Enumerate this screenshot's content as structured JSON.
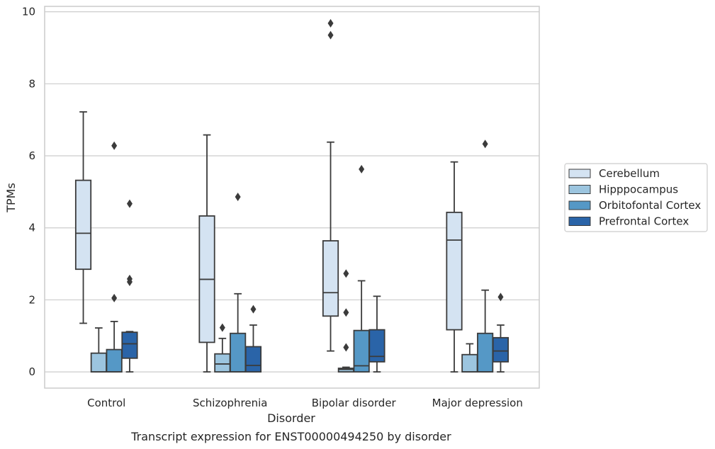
{
  "caption": "Transcript expression for ENST00000494250 by disorder",
  "chart_data": {
    "type": "box",
    "xlabel": "Disorder",
    "ylabel": "TPMs",
    "ylim": [
      -0.45,
      10.15
    ],
    "yticks": [
      0,
      2,
      4,
      6,
      8,
      10
    ],
    "grid": "horizontal",
    "legend_position": "right",
    "categories": [
      "Control",
      "Schizophrenia",
      "Bipolar disorder",
      "Major depression"
    ],
    "series": [
      {
        "name": "Cerebellum",
        "color": "#d4e3f2",
        "boxes": [
          {
            "whislo": 1.35,
            "q1": 2.85,
            "med": 3.85,
            "q3": 5.32,
            "whishi": 7.22,
            "fliers": []
          },
          {
            "whislo": 0.0,
            "q1": 0.82,
            "med": 2.57,
            "q3": 4.33,
            "whishi": 6.58,
            "fliers": []
          },
          {
            "whislo": 0.58,
            "q1": 1.55,
            "med": 2.2,
            "q3": 3.64,
            "whishi": 6.38,
            "fliers": [
              9.35,
              9.68
            ]
          },
          {
            "whislo": 0.0,
            "q1": 1.17,
            "med": 3.66,
            "q3": 4.43,
            "whishi": 5.83,
            "fliers": []
          }
        ]
      },
      {
        "name": "Hipppocampus",
        "color": "#9cc5df",
        "boxes": [
          {
            "whislo": 0.0,
            "q1": 0.0,
            "med": 0.0,
            "q3": 0.52,
            "whishi": 1.22,
            "fliers": []
          },
          {
            "whislo": 0.0,
            "q1": 0.0,
            "med": 0.22,
            "q3": 0.5,
            "whishi": 0.93,
            "fliers": [
              1.23
            ]
          },
          {
            "whislo": 0.0,
            "q1": 0.0,
            "med": 0.07,
            "q3": 0.1,
            "whishi": 0.13,
            "fliers": [
              0.68,
              1.65,
              2.73
            ]
          },
          {
            "whislo": 0.0,
            "q1": 0.0,
            "med": 0.0,
            "q3": 0.48,
            "whishi": 0.78,
            "fliers": []
          }
        ]
      },
      {
        "name": "Orbitofontal Cortex",
        "color": "#5598c6",
        "boxes": [
          {
            "whislo": 0.0,
            "q1": 0.0,
            "med": 0.0,
            "q3": 0.62,
            "whishi": 1.4,
            "fliers": [
              2.05,
              6.28
            ]
          },
          {
            "whislo": 0.0,
            "q1": 0.0,
            "med": 0.0,
            "q3": 1.07,
            "whishi": 2.17,
            "fliers": [
              4.86
            ]
          },
          {
            "whislo": 0.0,
            "q1": 0.0,
            "med": 0.17,
            "q3": 1.15,
            "whishi": 2.53,
            "fliers": [
              5.63
            ]
          },
          {
            "whislo": 0.0,
            "q1": 0.0,
            "med": 0.0,
            "q3": 1.07,
            "whishi": 2.27,
            "fliers": [
              6.33
            ]
          }
        ]
      },
      {
        "name": "Prefrontal Cortex",
        "color": "#2a64a8",
        "boxes": [
          {
            "whislo": 0.0,
            "q1": 0.38,
            "med": 0.78,
            "q3": 1.1,
            "whishi": 1.12,
            "fliers": [
              2.5,
              2.58,
              4.67
            ]
          },
          {
            "whislo": 0.0,
            "q1": 0.0,
            "med": 0.18,
            "q3": 0.7,
            "whishi": 1.3,
            "fliers": [
              1.74
            ]
          },
          {
            "whislo": 0.0,
            "q1": 0.28,
            "med": 0.43,
            "q3": 1.17,
            "whishi": 2.1,
            "fliers": []
          },
          {
            "whislo": 0.0,
            "q1": 0.28,
            "med": 0.58,
            "q3": 0.95,
            "whishi": 1.3,
            "fliers": [
              2.08
            ]
          }
        ]
      }
    ]
  }
}
